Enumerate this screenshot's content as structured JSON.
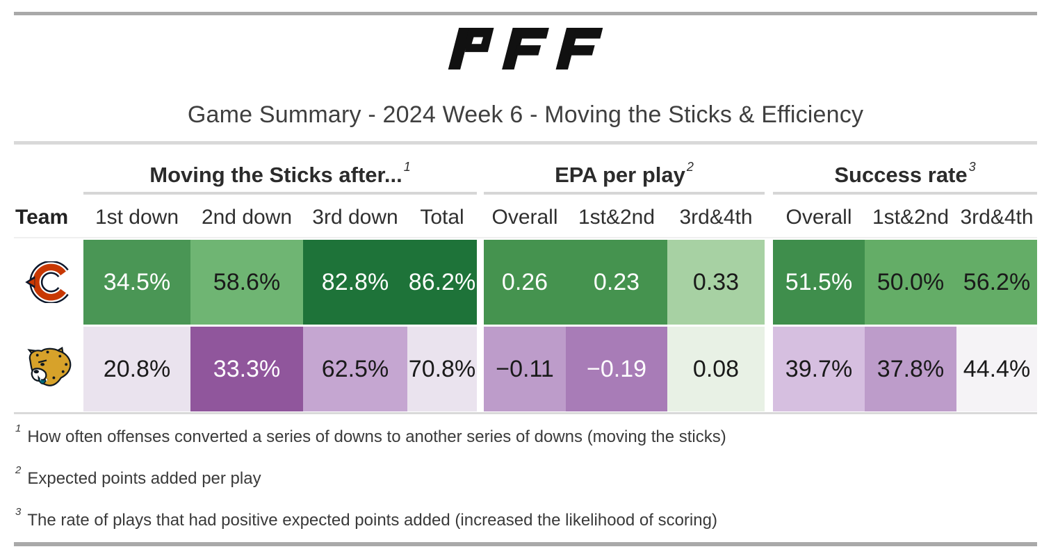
{
  "brand": {
    "logo_text": "PFF"
  },
  "title": "Game Summary - 2024 Week 6 - Moving the Sticks & Efficiency",
  "chart_data": {
    "type": "table",
    "subtype": "heatmap",
    "title": "Game Summary - 2024 Week 6 - Moving the Sticks & Efficiency",
    "team_header": "Team",
    "groups": [
      {
        "label": "Moving the Sticks after...",
        "footnote_ref": "1",
        "columns": [
          "1st down",
          "2nd down",
          "3rd down",
          "Total"
        ]
      },
      {
        "label": "EPA per play",
        "footnote_ref": "2",
        "columns": [
          "Overall",
          "1st&2nd",
          "3rd&4th"
        ]
      },
      {
        "label": "Success rate",
        "footnote_ref": "3",
        "columns": [
          "Overall",
          "1st&2nd",
          "3rd&4th"
        ]
      }
    ],
    "rows": [
      {
        "team": "Chicago Bears",
        "logo": "bears",
        "cells": [
          [
            {
              "v": "34.5%",
              "bg": "#4a9655",
              "fg": "#ffffff"
            },
            {
              "v": "58.6%",
              "bg": "#6fb573",
              "fg": "#1a1a1a"
            },
            {
              "v": "82.8%",
              "bg": "#1e7339",
              "fg": "#ffffff"
            },
            {
              "v": "86.2%",
              "bg": "#1e7339",
              "fg": "#ffffff"
            }
          ],
          [
            {
              "v": "0.26",
              "bg": "#45934f",
              "fg": "#ffffff"
            },
            {
              "v": "0.23",
              "bg": "#45934f",
              "fg": "#ffffff"
            },
            {
              "v": "0.33",
              "bg": "#a7d1a3",
              "fg": "#1a1a1a"
            }
          ],
          [
            {
              "v": "51.5%",
              "bg": "#3f8e4c",
              "fg": "#ffffff"
            },
            {
              "v": "50.0%",
              "bg": "#64ad67",
              "fg": "#1a1a1a"
            },
            {
              "v": "56.2%",
              "bg": "#64ad67",
              "fg": "#1a1a1a"
            }
          ]
        ]
      },
      {
        "team": "Jacksonville Jaguars",
        "logo": "jaguars",
        "cells": [
          [
            {
              "v": "20.8%",
              "bg": "#eae3ee",
              "fg": "#1a1a1a"
            },
            {
              "v": "33.3%",
              "bg": "#90569c",
              "fg": "#ffffff"
            },
            {
              "v": "62.5%",
              "bg": "#c5a6d1",
              "fg": "#1a1a1a"
            },
            {
              "v": "70.8%",
              "bg": "#eae3ee",
              "fg": "#1a1a1a"
            }
          ],
          [
            {
              "v": "−0.11",
              "bg": "#bd9cca",
              "fg": "#1a1a1a"
            },
            {
              "v": "−0.19",
              "bg": "#a87cb7",
              "fg": "#ffffff"
            },
            {
              "v": "0.08",
              "bg": "#e8f1e5",
              "fg": "#1a1a1a"
            }
          ],
          [
            {
              "v": "39.7%",
              "bg": "#d6bfe0",
              "fg": "#1a1a1a"
            },
            {
              "v": "37.8%",
              "bg": "#bd9cca",
              "fg": "#1a1a1a"
            },
            {
              "v": "44.4%",
              "bg": "#f5f3f6",
              "fg": "#1a1a1a"
            }
          ]
        ]
      }
    ]
  },
  "footnotes": [
    {
      "sup": "1",
      "text": "How often offenses converted a series of downs to another series of downs (moving the sticks)"
    },
    {
      "sup": "2",
      "text": "Expected points added per play"
    },
    {
      "sup": "3",
      "text": "The rate of plays that had positive expected points added (increased the likelihood of scoring)"
    }
  ],
  "colors": {
    "rule_dark": "#a9a9a9",
    "rule_light": "#d6d6d6",
    "bears_orange": "#c83803",
    "bears_navy": "#0b162a",
    "jaguars_gold": "#d7a22a",
    "jaguars_teal": "#006778",
    "jaguars_black": "#101820"
  }
}
